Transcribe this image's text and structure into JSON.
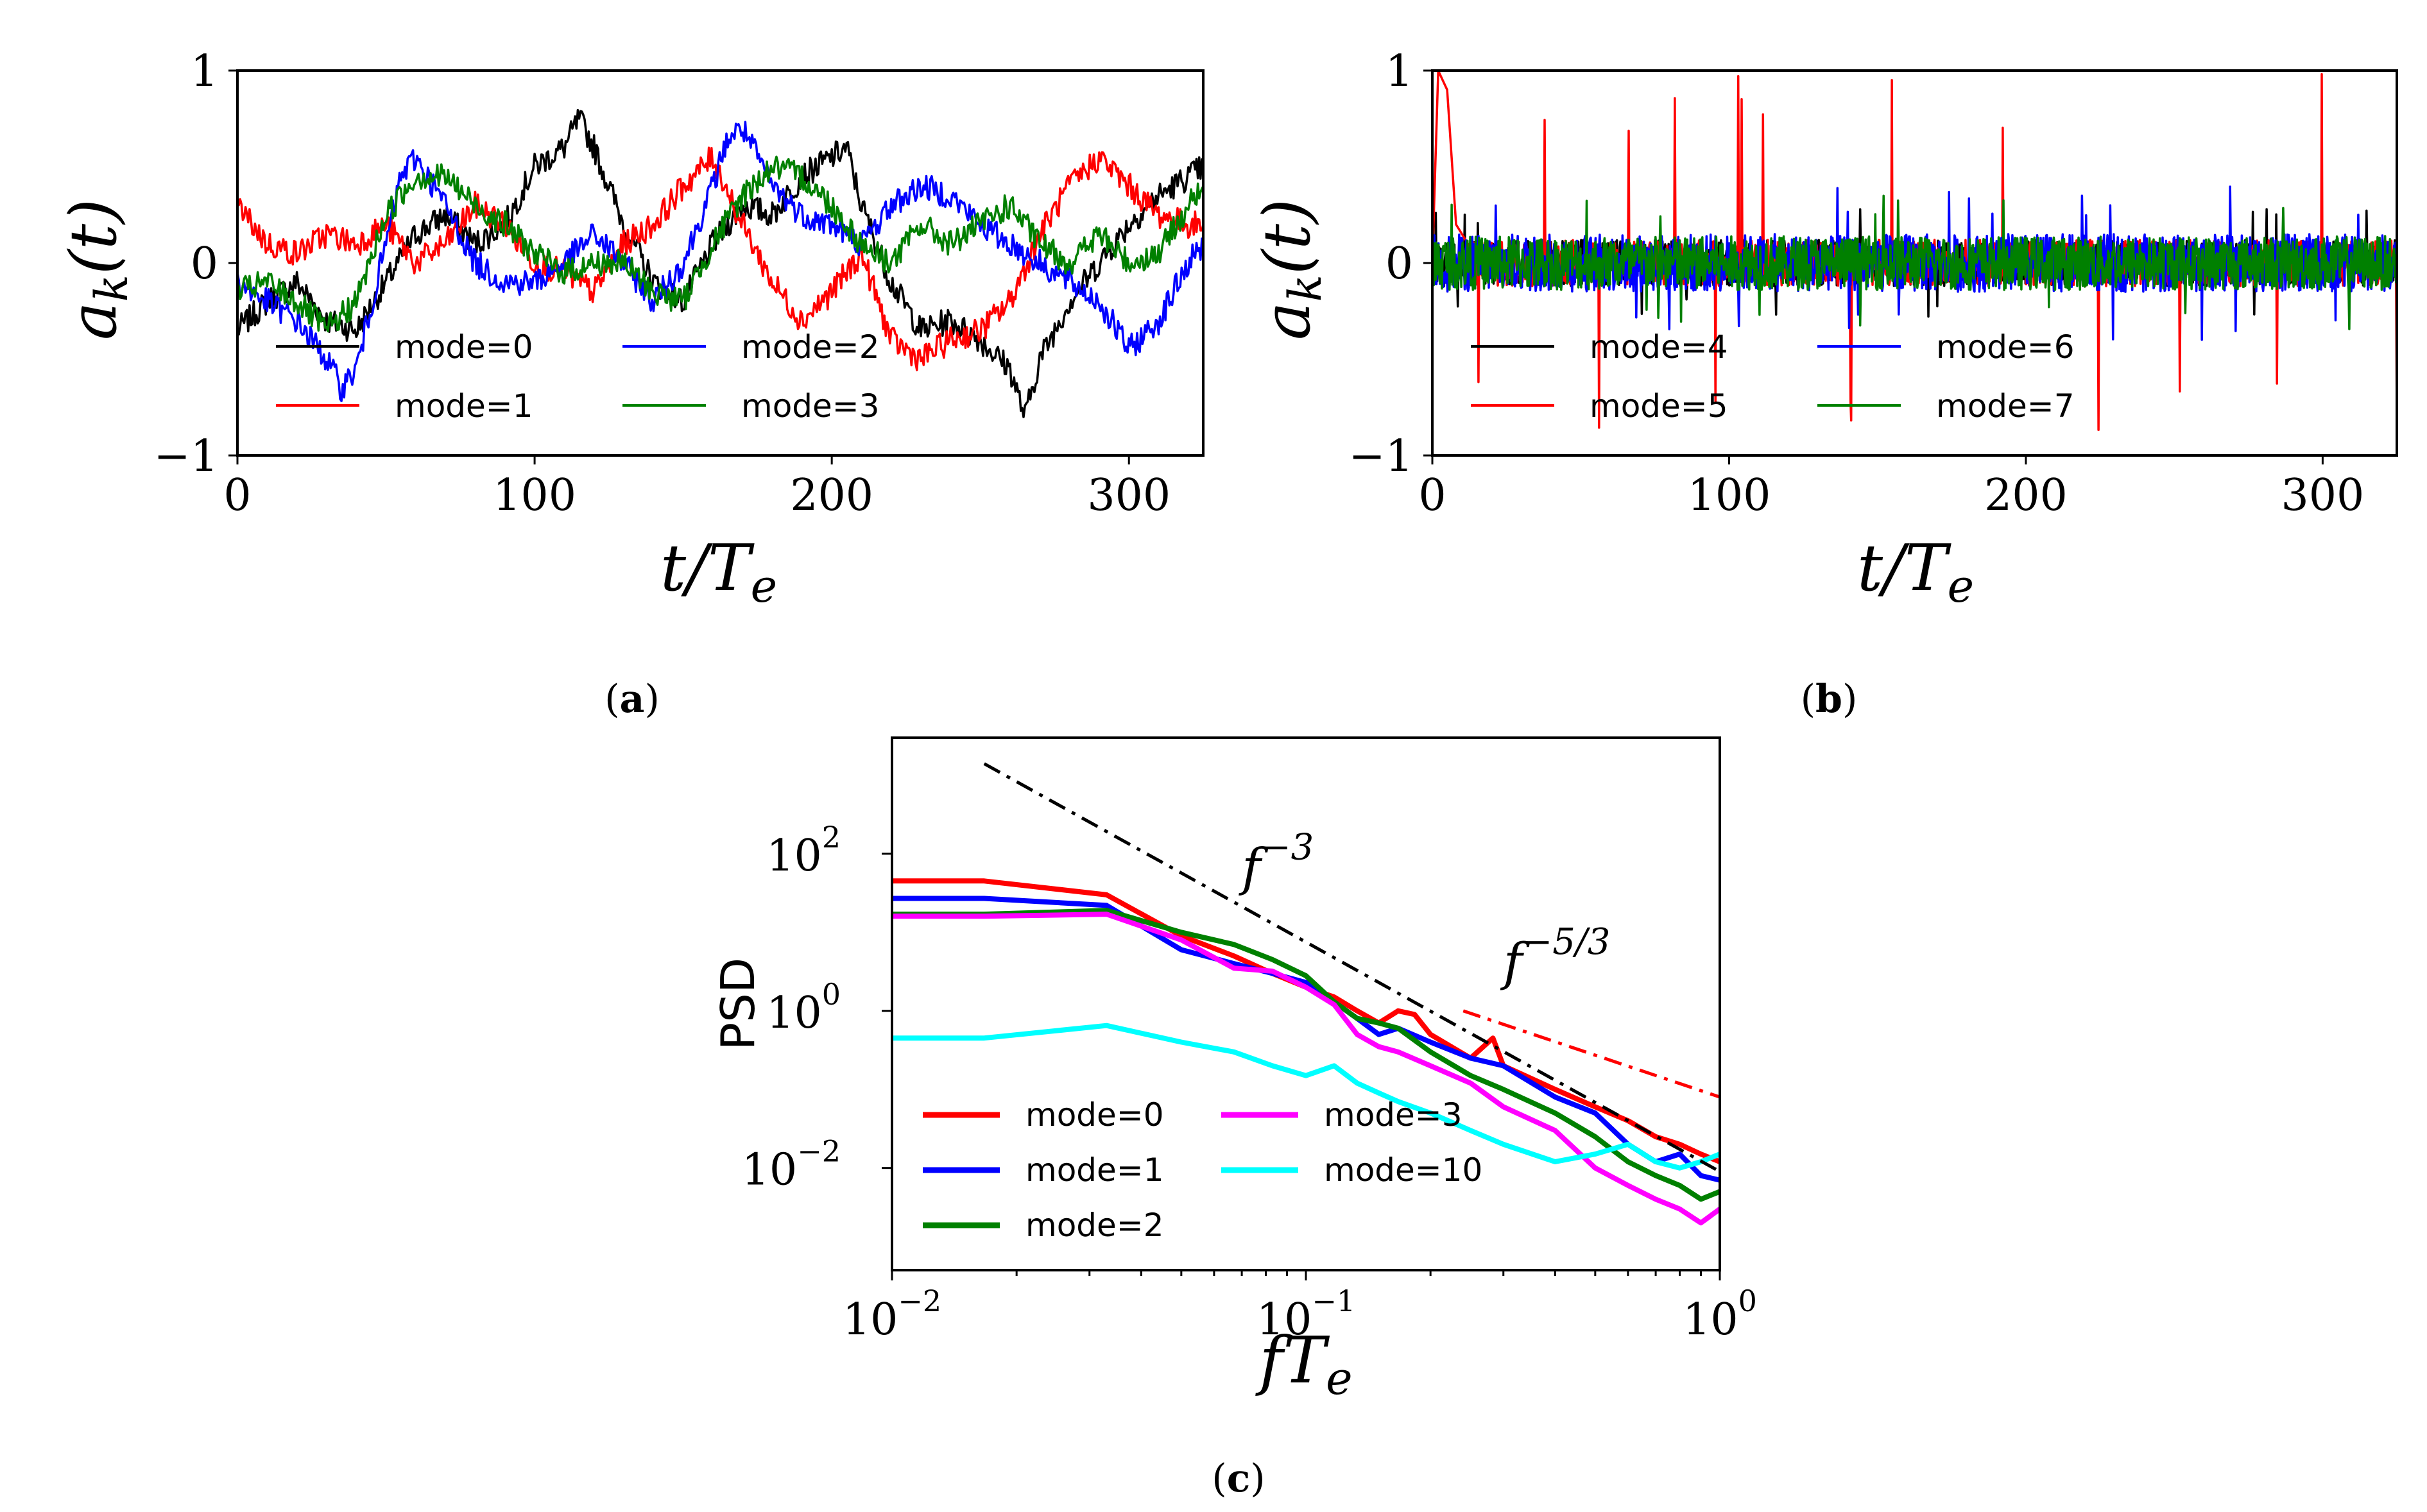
{
  "captions": {
    "a": "a",
    "b": "b",
    "c": "c"
  },
  "chart_data": [
    {
      "panel": "a",
      "type": "line",
      "xlabel": "t/T_e",
      "ylabel": "a_k(t)",
      "xlim": [
        0,
        325
      ],
      "ylim": [
        -1,
        1
      ],
      "xticks": [
        "0",
        "100",
        "200",
        "300"
      ],
      "yticks": [
        "−1",
        "0",
        "1"
      ],
      "legend_position": "lower-left",
      "series": [
        {
          "name": "mode=0",
          "color": "#000000",
          "x": [
            0,
            10,
            20,
            30,
            40,
            50,
            60,
            70,
            80,
            90,
            100,
            110,
            115,
            120,
            130,
            140,
            150,
            160,
            170,
            180,
            190,
            200,
            205,
            210,
            220,
            230,
            240,
            250,
            260,
            265,
            270,
            280,
            290,
            300,
            310,
            320,
            325
          ],
          "values": [
            -0.35,
            -0.2,
            -0.1,
            -0.3,
            -0.35,
            -0.1,
            0.15,
            0.25,
            0.1,
            0.2,
            0.5,
            0.6,
            0.75,
            0.6,
            0.2,
            -0.1,
            -0.2,
            0.1,
            0.3,
            0.25,
            0.45,
            0.55,
            0.6,
            0.3,
            -0.1,
            -0.35,
            -0.3,
            -0.4,
            -0.55,
            -0.8,
            -0.5,
            -0.2,
            0.0,
            0.2,
            0.35,
            0.45,
            0.5
          ]
        },
        {
          "name": "mode=1",
          "color": "#ff0000",
          "x": [
            0,
            10,
            20,
            30,
            40,
            50,
            60,
            70,
            80,
            90,
            100,
            110,
            120,
            130,
            140,
            150,
            160,
            170,
            180,
            190,
            200,
            210,
            220,
            230,
            240,
            250,
            260,
            270,
            280,
            290,
            300,
            310,
            320,
            325
          ],
          "values": [
            0.3,
            0.1,
            0.05,
            0.15,
            0.1,
            0.2,
            0.0,
            0.1,
            0.3,
            0.2,
            0.0,
            -0.05,
            -0.15,
            0.1,
            0.2,
            0.4,
            0.55,
            0.2,
            -0.1,
            -0.3,
            -0.15,
            0.05,
            -0.4,
            -0.5,
            -0.4,
            -0.35,
            -0.2,
            0.15,
            0.4,
            0.55,
            0.4,
            0.25,
            0.2,
            0.2
          ]
        },
        {
          "name": "mode=2",
          "color": "#0000ff",
          "x": [
            0,
            10,
            20,
            30,
            35,
            40,
            50,
            55,
            60,
            70,
            80,
            90,
            100,
            110,
            120,
            130,
            140,
            150,
            160,
            165,
            170,
            180,
            190,
            200,
            210,
            220,
            230,
            240,
            250,
            260,
            270,
            280,
            290,
            300,
            310,
            320,
            325
          ],
          "values": [
            -0.1,
            -0.2,
            -0.3,
            -0.5,
            -0.65,
            -0.55,
            0.1,
            0.45,
            0.55,
            0.3,
            0.0,
            -0.1,
            -0.1,
            0.0,
            0.15,
            0.0,
            -0.2,
            0.0,
            0.4,
            0.65,
            0.7,
            0.4,
            0.25,
            0.2,
            0.1,
            0.3,
            0.4,
            0.35,
            0.2,
            0.1,
            0.0,
            -0.1,
            -0.2,
            -0.45,
            -0.3,
            0.0,
            0.1
          ]
        },
        {
          "name": "mode=3",
          "color": "#008000",
          "x": [
            0,
            10,
            20,
            30,
            40,
            50,
            60,
            70,
            80,
            90,
            100,
            110,
            120,
            130,
            140,
            150,
            160,
            170,
            180,
            190,
            200,
            210,
            220,
            230,
            240,
            250,
            260,
            270,
            280,
            290,
            300,
            310,
            320,
            325
          ],
          "values": [
            -0.15,
            -0.1,
            -0.2,
            -0.35,
            -0.2,
            0.25,
            0.45,
            0.45,
            0.3,
            0.2,
            0.05,
            -0.05,
            0.0,
            0.0,
            -0.15,
            -0.2,
            0.1,
            0.35,
            0.5,
            0.45,
            0.3,
            0.1,
            0.0,
            0.2,
            0.1,
            0.2,
            0.3,
            0.1,
            0.0,
            0.15,
            0.0,
            0.05,
            0.3,
            0.4
          ]
        }
      ]
    },
    {
      "panel": "b",
      "type": "line",
      "xlabel": "t/T_e",
      "ylabel": "a_k(t)",
      "xlim": [
        0,
        325
      ],
      "ylim": [
        -1,
        1
      ],
      "xticks": [
        "0",
        "100",
        "200",
        "300"
      ],
      "yticks": [
        "−1",
        "0",
        "1"
      ],
      "legend_position": "lower-left",
      "series": [
        {
          "name": "mode=4",
          "color": "#000000",
          "amplitude": 0.12,
          "peak": 0.3
        },
        {
          "name": "mode=5",
          "color": "#ff0000",
          "amplitude": 0.12,
          "peak": 1.0,
          "initial_transient": {
            "x": [
              0,
              2,
              5,
              8,
              12
            ],
            "values": [
              0.0,
              1.0,
              0.9,
              0.2,
              0.1
            ]
          }
        },
        {
          "name": "mode=6",
          "color": "#0000ff",
          "amplitude": 0.15,
          "peak": 0.4
        },
        {
          "name": "mode=7",
          "color": "#008000",
          "amplitude": 0.14,
          "peak": 0.35
        }
      ]
    },
    {
      "panel": "c",
      "type": "line",
      "scale": "log-log",
      "xlabel": "fT_e",
      "ylabel": "PSD",
      "xlim": [
        0.01,
        1
      ],
      "ylim": [
        0.0005,
        3000
      ],
      "xticks": [
        "10^-2",
        "10^-1",
        "10^0"
      ],
      "yticks": [
        "10^-2",
        "10^0",
        "10^2"
      ],
      "legend_position": "lower-left",
      "annotations": [
        {
          "text": "f^-3",
          "x": 0.07,
          "y": 40
        },
        {
          "text": "f^-5/3",
          "x": 0.3,
          "y": 2.5
        }
      ],
      "reference_lines": [
        {
          "label": "f^-3",
          "color": "#000000",
          "style": "dash-dot",
          "x": [
            0.0167,
            1
          ],
          "values": [
            1400,
            0.009
          ]
        },
        {
          "label": "f^-5/3",
          "color": "#ff0000",
          "style": "dash-dot",
          "x": [
            0.24,
            1
          ],
          "values": [
            1.0,
            0.08
          ]
        }
      ],
      "series": [
        {
          "name": "mode=0",
          "color": "#ff0000",
          "x": [
            0.01,
            0.0167,
            0.033,
            0.05,
            0.067,
            0.083,
            0.1,
            0.117,
            0.133,
            0.15,
            0.167,
            0.183,
            0.2,
            0.25,
            0.283,
            0.3,
            0.4,
            0.5,
            0.6,
            0.7,
            0.8,
            0.9,
            1.0
          ],
          "values": [
            45,
            45,
            30,
            9,
            5,
            3,
            2,
            1.5,
            1.0,
            0.7,
            1.0,
            0.9,
            0.5,
            0.25,
            0.45,
            0.2,
            0.1,
            0.06,
            0.04,
            0.025,
            0.02,
            0.015,
            0.012
          ]
        },
        {
          "name": "mode=1",
          "color": "#0000ff",
          "x": [
            0.01,
            0.0167,
            0.033,
            0.05,
            0.067,
            0.083,
            0.1,
            0.117,
            0.133,
            0.15,
            0.167,
            0.2,
            0.25,
            0.3,
            0.4,
            0.5,
            0.6,
            0.7,
            0.8,
            0.9,
            1.0
          ],
          "values": [
            27,
            27,
            22,
            6,
            4,
            3,
            2.3,
            1.3,
            0.8,
            0.5,
            0.6,
            0.4,
            0.25,
            0.2,
            0.08,
            0.05,
            0.02,
            0.012,
            0.015,
            0.008,
            0.007
          ]
        },
        {
          "name": "mode=2",
          "color": "#008000",
          "x": [
            0.01,
            0.0167,
            0.033,
            0.05,
            0.067,
            0.083,
            0.1,
            0.117,
            0.133,
            0.15,
            0.167,
            0.2,
            0.25,
            0.3,
            0.4,
            0.5,
            0.6,
            0.7,
            0.8,
            0.9,
            1.0
          ],
          "values": [
            17,
            17,
            19,
            10,
            7,
            4.5,
            2.8,
            1.3,
            0.8,
            0.7,
            0.6,
            0.3,
            0.15,
            0.1,
            0.05,
            0.025,
            0.012,
            0.008,
            0.006,
            0.004,
            0.005
          ]
        },
        {
          "name": "mode=3",
          "color": "#ff00ff",
          "x": [
            0.01,
            0.0167,
            0.033,
            0.05,
            0.067,
            0.083,
            0.1,
            0.117,
            0.133,
            0.15,
            0.167,
            0.2,
            0.25,
            0.3,
            0.4,
            0.5,
            0.6,
            0.7,
            0.8,
            0.9,
            1.0
          ],
          "values": [
            16,
            16,
            17,
            8,
            3.5,
            3.2,
            2.0,
            1.2,
            0.5,
            0.35,
            0.3,
            0.2,
            0.12,
            0.06,
            0.03,
            0.01,
            0.006,
            0.004,
            0.003,
            0.002,
            0.003
          ]
        },
        {
          "name": "mode=10",
          "color": "#00ffff",
          "x": [
            0.01,
            0.0167,
            0.033,
            0.05,
            0.067,
            0.083,
            0.1,
            0.117,
            0.133,
            0.15,
            0.167,
            0.2,
            0.25,
            0.3,
            0.4,
            0.5,
            0.6,
            0.7,
            0.8,
            0.9,
            1.0
          ],
          "values": [
            0.45,
            0.45,
            0.65,
            0.4,
            0.3,
            0.2,
            0.15,
            0.2,
            0.12,
            0.09,
            0.07,
            0.05,
            0.03,
            0.02,
            0.012,
            0.015,
            0.02,
            0.012,
            0.01,
            0.012,
            0.015
          ]
        }
      ]
    }
  ]
}
